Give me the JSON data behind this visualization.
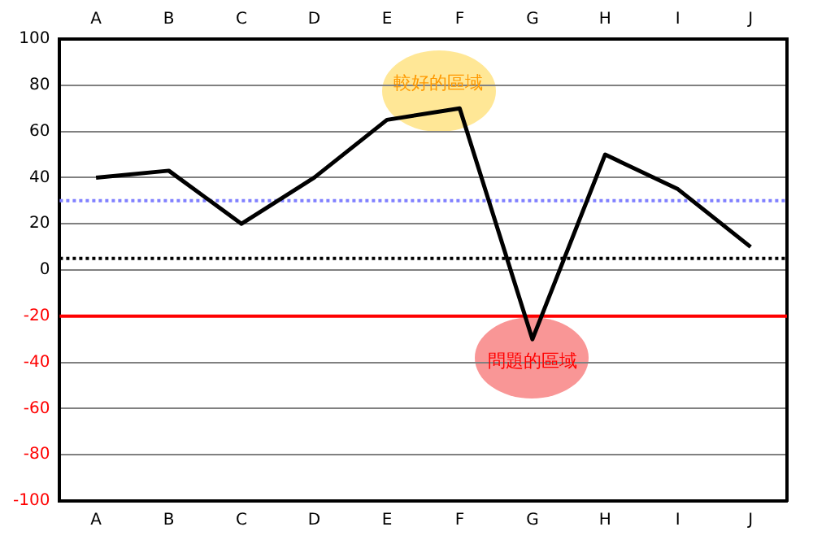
{
  "chart_data": {
    "type": "line",
    "categories": [
      "A",
      "B",
      "C",
      "D",
      "E",
      "F",
      "G",
      "H",
      "I",
      "J"
    ],
    "series": [
      {
        "color": "#000000",
        "values": [
          40,
          43,
          20,
          40,
          65,
          70,
          -30,
          50,
          35,
          10
        ]
      }
    ],
    "ylim": [
      -100,
      100
    ],
    "yticks": [
      -100,
      -80,
      -60,
      -40,
      -20,
      0,
      20,
      40,
      60,
      80,
      100
    ],
    "grid": "y",
    "legend": false,
    "marker": "none",
    "line_style": "solid",
    "ref_lines": [
      {
        "axis": "y",
        "value": 30,
        "color": "#8080ff",
        "line_style": "dotted"
      },
      {
        "axis": "y",
        "value": 5,
        "color": "#000000",
        "line_style": "dotted"
      },
      {
        "axis": "y",
        "value": -20,
        "color": "#ff0000",
        "line_style": "solid"
      }
    ],
    "annotations": [
      "較好的區域",
      "問題的區域"
    ]
  }
}
